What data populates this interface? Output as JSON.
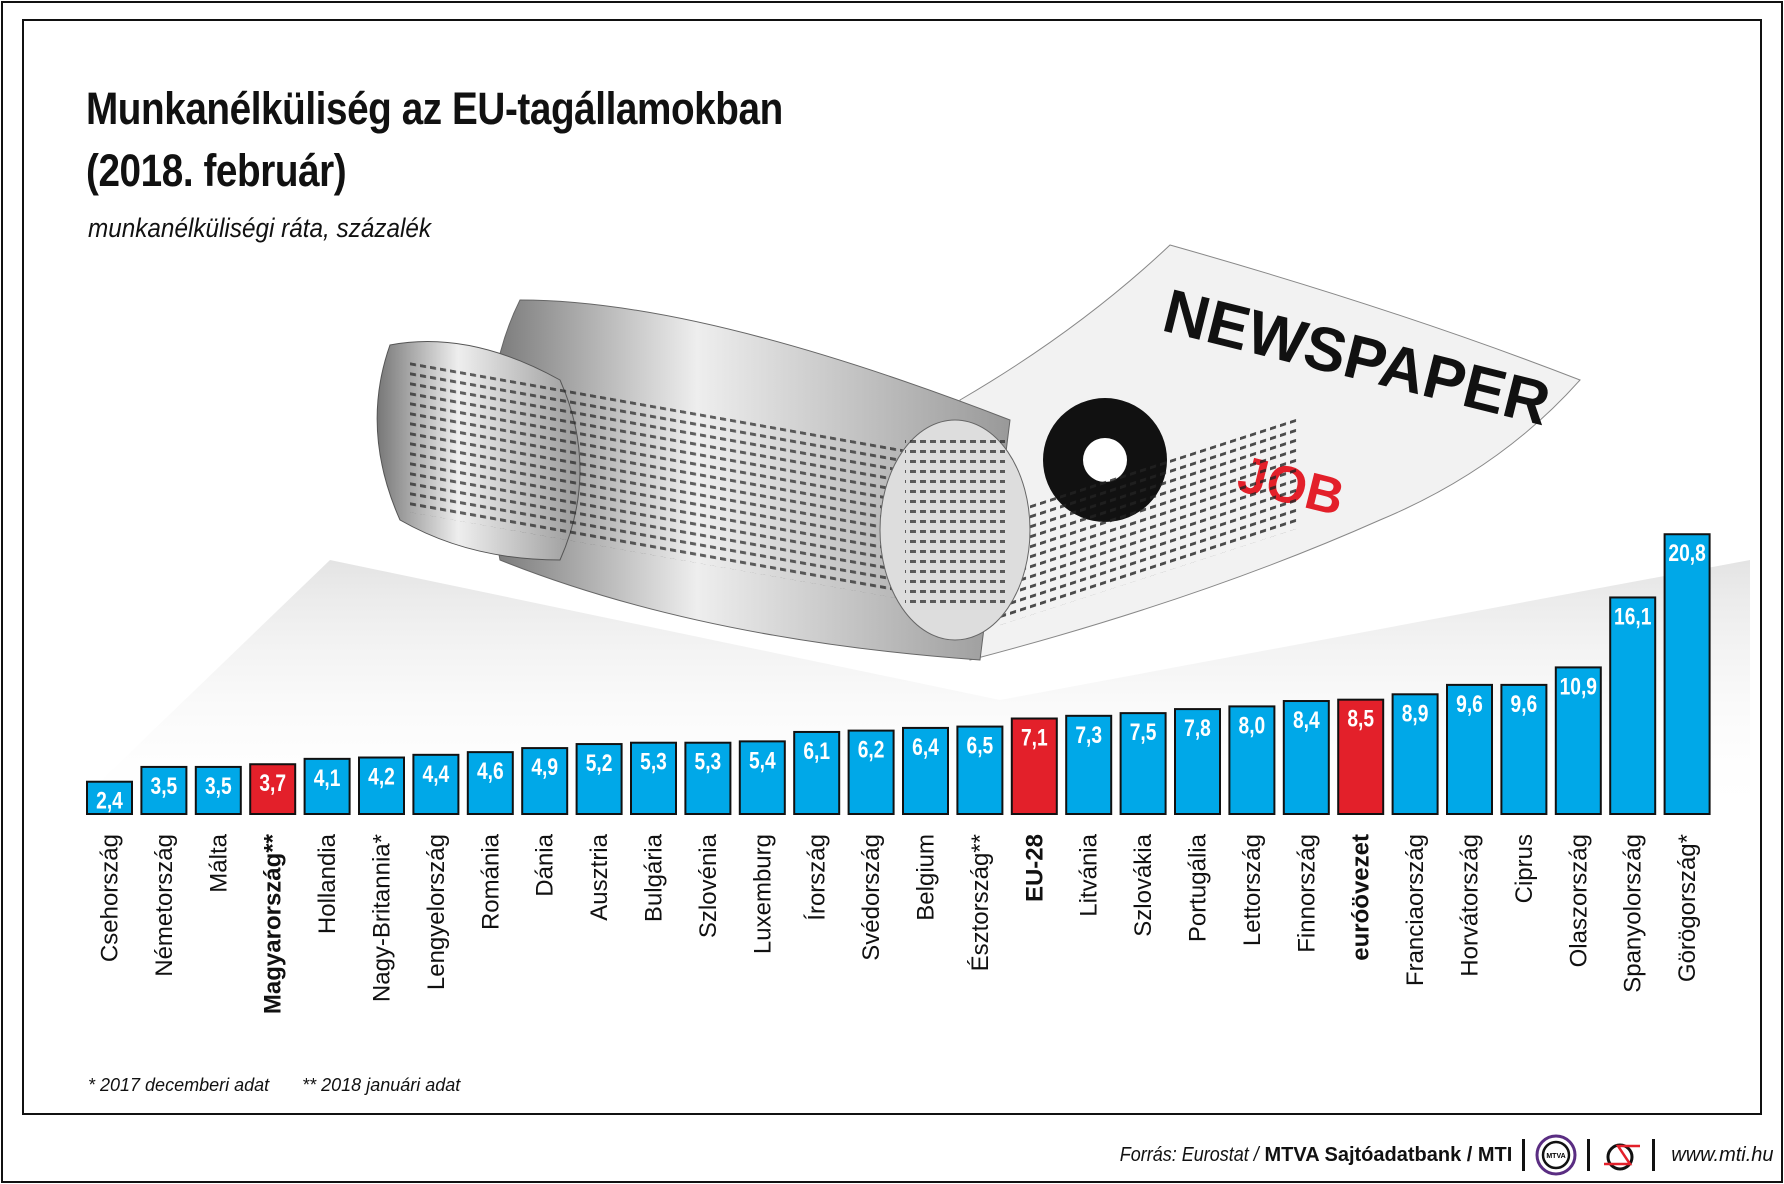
{
  "header": {
    "title_line1": "Munkanélküliség az EU-tagállamokban",
    "title_line2": "(2018. február)",
    "subtitle": "munkanélküliségi ráta, százalék"
  },
  "illustration": {
    "headline": "NEWSPAPER",
    "tag": "JOB"
  },
  "chart_data": {
    "type": "bar",
    "title": "Munkanélküliség az EU-tagállamokban (2018. február)",
    "ylabel": "munkanélküliségi ráta, százalék",
    "ylim": [
      0,
      21
    ],
    "grid": false,
    "categories": [
      "Csehország",
      "Németország",
      "Málta",
      "Magyarország**",
      "Hollandia",
      "Nagy-Britannia*",
      "Lengyelország",
      "Románia",
      "Dánia",
      "Ausztria",
      "Bulgária",
      "Szlovénia",
      "Luxemburg",
      "Írország",
      "Svédország",
      "Belgium",
      "Észtország**",
      "EU-28",
      "Litvánia",
      "Szlovákia",
      "Portugália",
      "Lettország",
      "Finnország",
      "euróövezet",
      "Franciaország",
      "Horvátország",
      "Ciprus",
      "Olaszország",
      "Spanyolország",
      "Görögország*"
    ],
    "values": [
      2.4,
      3.5,
      3.5,
      3.7,
      4.1,
      4.2,
      4.4,
      4.6,
      4.9,
      5.2,
      5.3,
      5.3,
      5.4,
      6.1,
      6.2,
      6.4,
      6.5,
      7.1,
      7.3,
      7.5,
      7.8,
      8.0,
      8.4,
      8.5,
      8.9,
      9.6,
      9.6,
      10.9,
      16.1,
      20.8
    ],
    "value_labels": [
      "2,4",
      "3,5",
      "3,5",
      "3,7",
      "4,1",
      "4,2",
      "4,4",
      "4,6",
      "4,9",
      "5,2",
      "5,3",
      "5,3",
      "5,4",
      "6,1",
      "6,2",
      "6,4",
      "6,5",
      "7,1",
      "7,3",
      "7,5",
      "7,8",
      "8,0",
      "8,4",
      "8,5",
      "8,9",
      "9,6",
      "9,6",
      "10,9",
      "16,1",
      "20,8"
    ],
    "highlighted": [
      "Magyarország**",
      "EU-28",
      "euróövezet"
    ],
    "bold_labels": [
      "Magyarország**",
      "EU-28",
      "euróövezet"
    ],
    "colors": {
      "default": "#00a8e8",
      "highlight": "#e3202a"
    }
  },
  "footnotes": [
    "* 2017 decemberi adat",
    "** 2018 januári adat"
  ],
  "footer": {
    "source_prefix": "Forrás: Eurostat / ",
    "source_bold": "MTVA Sajtóadatbank / MTI",
    "mtva_logo_text": "MTVA",
    "url": "www.mti.hu"
  }
}
